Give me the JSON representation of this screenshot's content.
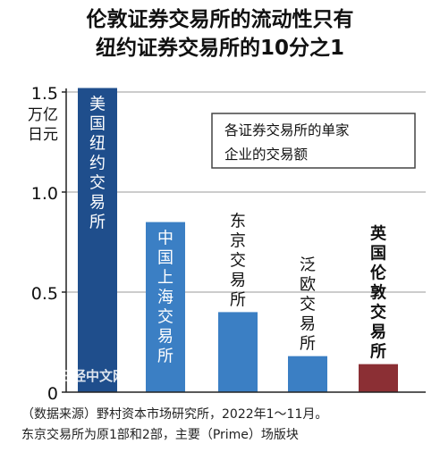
{
  "title_lines": [
    "伦敦证券交易所的流动性只有",
    "纽约证券交易所的10分之1"
  ],
  "legend_box": [
    "各证券交易所的单家",
    "企业的交易额"
  ],
  "watermark": "日经中文网",
  "footer_lines": [
    "（数据来源）野村资本市场研究所，2022年1～11月。",
    "东京交易所为原1部和2部，主要（Prime）场版块"
  ],
  "chart_data": {
    "type": "bar",
    "title": "伦敦证券交易所的流动性只有纽约证券交易所的10分之1",
    "ylabel": "万亿日元",
    "ylim": [
      0,
      1.5
    ],
    "yticks": [
      0,
      0.5,
      1.0,
      1.5
    ],
    "ytick_labels": [
      "0",
      "0.5",
      "1.0",
      "1.5"
    ],
    "categories": [
      "美国纽约交易所",
      "中国上海交易所",
      "东京交易所",
      "泛欧交易所",
      "英国伦敦交易所"
    ],
    "values": [
      1.52,
      0.85,
      0.4,
      0.18,
      0.14
    ],
    "colors": [
      "#1f4e8c",
      "#3b7fc4",
      "#3b7fc4",
      "#3b7fc4",
      "#8b2f34"
    ],
    "annotation": "各证券交易所的单家企业的交易额"
  }
}
